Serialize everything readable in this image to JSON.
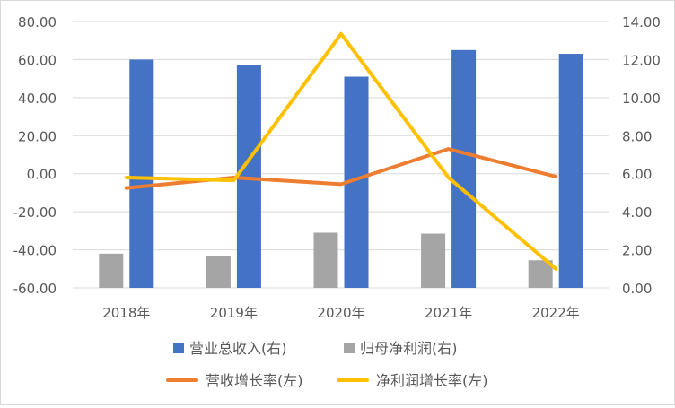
{
  "chart_data": {
    "type": "bar",
    "categories": [
      "2018年",
      "2019年",
      "2020年",
      "2021年",
      "2022年"
    ],
    "left_axis": {
      "min": -60,
      "max": 80,
      "step": 20,
      "tick_labels": [
        "-60.00",
        "-40.00",
        "-20.00",
        "0.00",
        "20.00",
        "40.00",
        "60.00",
        "80.00"
      ]
    },
    "right_axis": {
      "min": 0,
      "max": 14,
      "step": 2,
      "tick_labels": [
        "0.00",
        "2.00",
        "4.00",
        "6.00",
        "8.00",
        "10.00",
        "12.00",
        "14.00"
      ]
    },
    "grid": true,
    "legend_position": "bottom",
    "series": [
      {
        "name": "营业总收入(右)",
        "type": "bar",
        "axis": "right",
        "color": "#4472C4",
        "values": [
          12.0,
          11.7,
          11.1,
          12.5,
          12.3
        ]
      },
      {
        "name": "归母净利润(右)",
        "type": "bar",
        "axis": "right",
        "color": "#A5A5A5",
        "values": [
          1.8,
          1.65,
          2.9,
          2.85,
          1.45
        ]
      },
      {
        "name": "营收增长率(左)",
        "type": "line",
        "axis": "left",
        "color": "#ED7D31",
        "values": [
          -7.5,
          -2.0,
          -5.5,
          13.0,
          -1.5
        ]
      },
      {
        "name": "净利润增长率(左)",
        "type": "line",
        "axis": "left",
        "color": "#FFC000",
        "values": [
          -2.0,
          -3.5,
          73.5,
          -2.0,
          -50.0
        ]
      }
    ]
  }
}
